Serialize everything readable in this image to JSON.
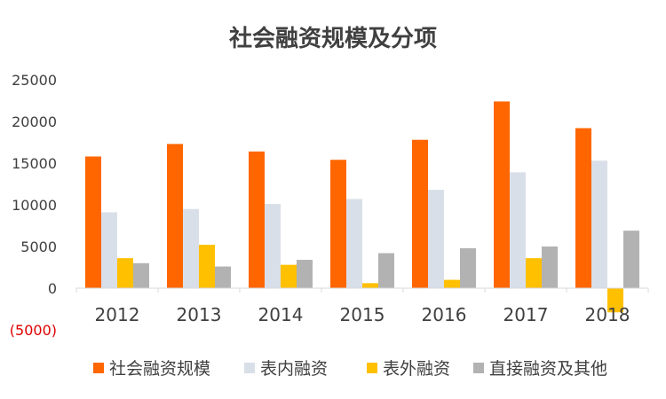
{
  "chart_data": {
    "type": "bar",
    "title": "社会融资规模及分项",
    "xlabel": "",
    "ylabel": "",
    "categories": [
      "2012",
      "2013",
      "2014",
      "2015",
      "2016",
      "2017",
      "2018"
    ],
    "ylim": [
      -5000,
      25000
    ],
    "y_ticks": [
      25000,
      20000,
      15000,
      10000,
      5000,
      0,
      -5000
    ],
    "y_tick_labels": [
      "25000",
      "20000",
      "15000",
      "10000",
      "5000",
      "0",
      "(5000)"
    ],
    "grid": false,
    "legend_position": "bottom",
    "series": [
      {
        "name": "社会融资规模",
        "color": "#ff6600",
        "values": [
          15800,
          17300,
          16400,
          15400,
          17800,
          22400,
          19200
        ]
      },
      {
        "name": "表内融资",
        "color": "#d9dfe8",
        "values": [
          9100,
          9500,
          10100,
          10700,
          11800,
          13900,
          15300
        ]
      },
      {
        "name": "表外融资",
        "color": "#ffc000",
        "values": [
          3600,
          5200,
          2800,
          600,
          1000,
          3600,
          -2900
        ]
      },
      {
        "name": "直接融资及其他",
        "color": "#b2b2b2",
        "values": [
          3000,
          2600,
          3400,
          4200,
          4800,
          5000,
          6900
        ]
      }
    ]
  }
}
